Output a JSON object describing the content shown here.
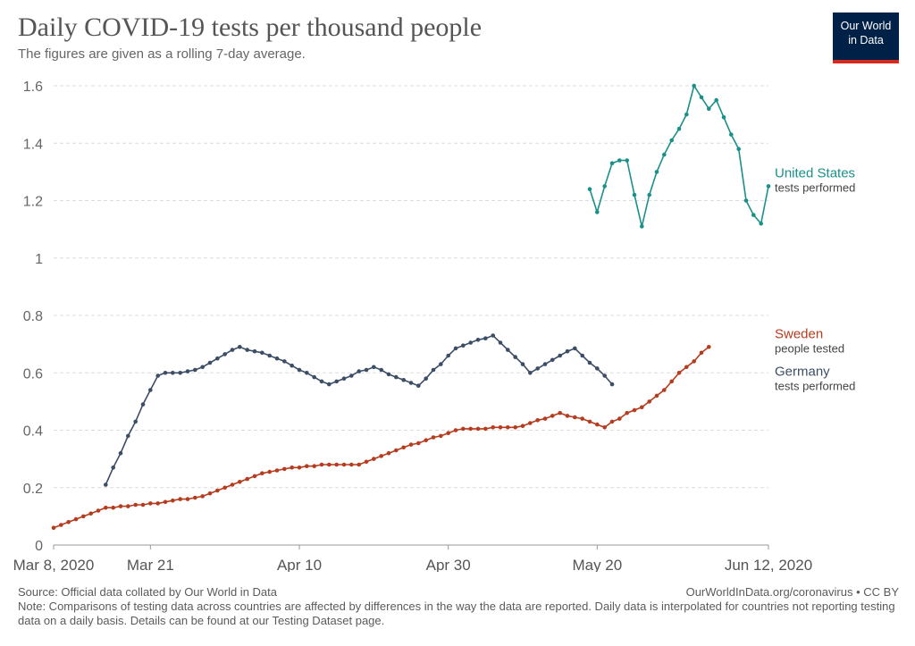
{
  "header": {
    "title": "Daily COVID-19 tests per thousand people",
    "subtitle": "The figures are given as a rolling 7-day average.",
    "logo_line1": "Our World",
    "logo_line2": "in Data"
  },
  "footer": {
    "source": "Source: Official data collated by Our World in Data",
    "credit": "OurWorldInData.org/coronavirus • CC BY",
    "note": "Note: Comparisons of testing data across countries are affected by differences in the way the data are reported. Daily data is interpolated for countries not reporting testing data on a daily basis. Details can be found at our Testing Dataset page."
  },
  "chart_data": {
    "type": "line",
    "x_unit": "date",
    "xlim": [
      "2020-03-08",
      "2020-06-12"
    ],
    "ylim": [
      0,
      1.6
    ],
    "y_ticks": [
      0,
      0.2,
      0.4,
      0.6,
      0.8,
      1,
      1.2,
      1.4,
      1.6
    ],
    "y_tick_labels": [
      "0",
      "0.2",
      "0.4",
      "0.6",
      "0.8",
      "1",
      "1.2",
      "1.4",
      "1.6"
    ],
    "x_ticks": [
      {
        "date": "2020-03-08",
        "label": "Mar 8, 2020"
      },
      {
        "date": "2020-03-21",
        "label": "Mar 21"
      },
      {
        "date": "2020-04-10",
        "label": "Apr 10"
      },
      {
        "date": "2020-04-30",
        "label": "Apr 30"
      },
      {
        "date": "2020-05-20",
        "label": "May 20"
      },
      {
        "date": "2020-06-12",
        "label": "Jun 12, 2020"
      }
    ],
    "grid": "horizontal-dashed",
    "series": [
      {
        "name": "United States",
        "metric": "tests performed",
        "color": "#1a9088",
        "start_date": "2020-05-19",
        "values": [
          1.24,
          1.16,
          1.25,
          1.33,
          1.34,
          1.34,
          1.22,
          1.11,
          1.22,
          1.3,
          1.36,
          1.41,
          1.45,
          1.5,
          1.6,
          1.56,
          1.52,
          1.55,
          1.49,
          1.43,
          1.38,
          1.2,
          1.15,
          1.12,
          1.25
        ]
      },
      {
        "name": "Sweden",
        "metric": "people tested",
        "color": "#b53c1e",
        "start_date": "2020-03-08",
        "values": [
          0.06,
          0.07,
          0.08,
          0.09,
          0.1,
          0.11,
          0.12,
          0.13,
          0.13,
          0.135,
          0.135,
          0.14,
          0.14,
          0.145,
          0.145,
          0.15,
          0.155,
          0.16,
          0.16,
          0.165,
          0.17,
          0.18,
          0.19,
          0.2,
          0.21,
          0.22,
          0.23,
          0.24,
          0.25,
          0.255,
          0.26,
          0.265,
          0.27,
          0.27,
          0.275,
          0.275,
          0.28,
          0.28,
          0.28,
          0.28,
          0.28,
          0.28,
          0.29,
          0.3,
          0.31,
          0.32,
          0.33,
          0.34,
          0.35,
          0.355,
          0.365,
          0.375,
          0.38,
          0.39,
          0.4,
          0.405,
          0.405,
          0.405,
          0.405,
          0.41,
          0.41,
          0.41,
          0.41,
          0.415,
          0.425,
          0.435,
          0.44,
          0.45,
          0.46,
          0.45,
          0.445,
          0.44,
          0.43,
          0.42,
          0.41,
          0.43,
          0.44,
          0.46,
          0.47,
          0.48,
          0.5,
          0.52,
          0.54,
          0.57,
          0.6,
          0.62,
          0.64,
          0.67,
          0.69
        ]
      },
      {
        "name": "Germany",
        "metric": "tests performed",
        "color": "#3c4e66",
        "start_date": "2020-03-15",
        "values": [
          0.21,
          0.27,
          0.32,
          0.38,
          0.43,
          0.49,
          0.54,
          0.59,
          0.6,
          0.6,
          0.6,
          0.605,
          0.61,
          0.62,
          0.635,
          0.65,
          0.665,
          0.68,
          0.69,
          0.68,
          0.675,
          0.67,
          0.66,
          0.65,
          0.64,
          0.625,
          0.61,
          0.6,
          0.585,
          0.57,
          0.56,
          0.57,
          0.58,
          0.59,
          0.605,
          0.61,
          0.62,
          0.61,
          0.595,
          0.585,
          0.575,
          0.565,
          0.555,
          0.58,
          0.61,
          0.63,
          0.66,
          0.685,
          0.695,
          0.705,
          0.715,
          0.72,
          0.73,
          0.705,
          0.68,
          0.655,
          0.63,
          0.6,
          0.615,
          0.63,
          0.645,
          0.66,
          0.675,
          0.685,
          0.66,
          0.635,
          0.615,
          0.59,
          0.56
        ]
      }
    ],
    "label_order": [
      "United States",
      "Sweden",
      "Germany"
    ]
  }
}
